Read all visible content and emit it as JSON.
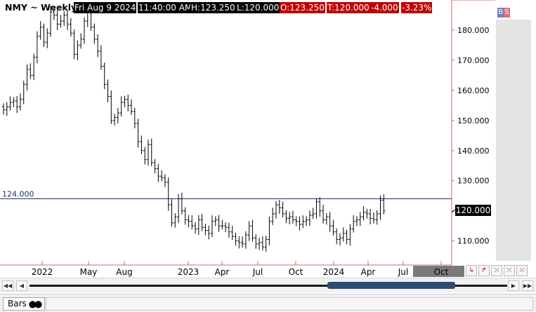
{
  "header": {
    "title": "NMY ~ Weekly",
    "date": "Fri Aug 9 2024",
    "time": "11:40:00 AM",
    "high": "H:123.250",
    "low": "L:120.000",
    "open": "O:123.250",
    "close": "T:120.000",
    "change": "-4.000",
    "change_pct": "-3.23%"
  },
  "toggles": {
    "b": "B",
    "s": "S",
    "b_color": "#6f7fbf",
    "s_color": "#d86f7f"
  },
  "last_price": "120.000",
  "reference_line": {
    "value": 124,
    "label": "124.000",
    "color": "#1f2f6b"
  },
  "time_tools": [
    "↳",
    "↱",
    "⤫",
    "⤫",
    "⤫"
  ],
  "status": {
    "tab": "Bars",
    "tab_icon": "two-circles-icon"
  },
  "colors": {
    "axis_red": "#e06060",
    "bars": "#000000",
    "future_zone": "#7a7a7a",
    "scroll_thumb": "#2c4d72"
  },
  "chart_data": {
    "type": "ohlc",
    "yaxis": {
      "min": 102,
      "max": 190,
      "ticks": [
        110,
        120,
        130,
        140,
        150,
        160,
        170,
        180
      ],
      "tick_labels": [
        "110.000",
        "120.000",
        "130.000",
        "140.000",
        "150.000",
        "160.000",
        "170.000",
        "180.000"
      ]
    },
    "xaxis": {
      "labels": [
        "2022",
        "May",
        "Aug",
        "2023",
        "Apr",
        "Jul",
        "Oct",
        "2024",
        "Apr",
        "Jul",
        "Oct"
      ]
    },
    "series": [
      {
        "values": [
          153.5,
          154.5,
          156.0,
          156.5,
          154.5,
          157.0,
          162.0,
          167.0,
          165.0,
          171.0,
          178.0,
          181.0,
          176.0,
          179.0,
          186.0,
          185.0,
          182.0,
          183.0,
          185.0,
          182.0,
          179.0,
          172.0,
          175.0,
          177.0,
          183.0,
          186.0,
          181.0,
          177.0,
          173.0,
          168.0,
          162.0,
          158.0,
          150.0,
          151.0,
          152.5,
          156.0,
          157.0,
          155.0,
          153.0,
          149.0,
          143.0,
          140.0,
          137.0,
          142.0,
          136.0,
          134.0,
          131.5,
          131.0,
          129.5,
          122.0,
          116.0,
          118.0,
          124.0,
          120.0,
          117.0,
          116.5,
          115.0,
          114.0,
          117.0,
          114.5,
          113.5,
          112.5,
          116.5,
          117.0,
          115.0,
          115.0,
          114.5,
          113.0,
          111.5,
          110.0,
          109.5,
          109.0,
          112.0,
          115.0,
          111.0,
          109.0,
          109.5,
          108.0,
          110.5,
          116.5,
          119.0,
          122.0,
          121.0,
          119.0,
          117.5,
          118.0,
          117.0,
          116.5,
          115.5,
          116.5,
          117.0,
          118.5,
          119.0,
          123.0,
          120.0,
          117.0,
          118.0,
          115.0,
          113.0,
          110.5,
          111.0,
          112.5,
          110.5,
          114.0,
          116.5,
          117.0,
          118.0,
          119.5,
          119.0,
          117.5,
          117.0,
          119.0,
          123.5,
          120.0
        ]
      }
    ]
  }
}
